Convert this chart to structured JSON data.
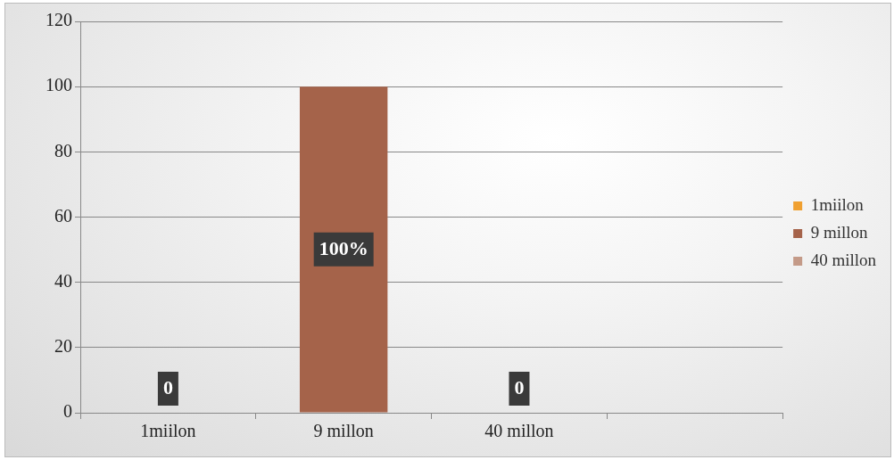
{
  "chart_data": {
    "type": "bar",
    "categories": [
      "1miilon",
      "9 millon",
      "40 millon",
      null
    ],
    "series": [
      {
        "name": "1miilon",
        "color": "#f0a030",
        "values": [
          0,
          null,
          null,
          null
        ],
        "value_labels": [
          "0",
          null,
          null,
          null
        ]
      },
      {
        "name": "9 millon",
        "color": "#a5634a",
        "values": [
          null,
          100,
          null,
          null
        ],
        "value_labels": [
          null,
          "100%",
          null,
          null
        ]
      },
      {
        "name": "40 millon",
        "color": "#c49a88",
        "values": [
          null,
          null,
          0,
          null
        ],
        "value_labels": [
          null,
          null,
          "0",
          null
        ]
      }
    ],
    "ylim": [
      0,
      120
    ],
    "yticks": [
      0,
      20,
      40,
      60,
      80,
      100,
      120
    ],
    "grid": "y",
    "legend": "right"
  }
}
